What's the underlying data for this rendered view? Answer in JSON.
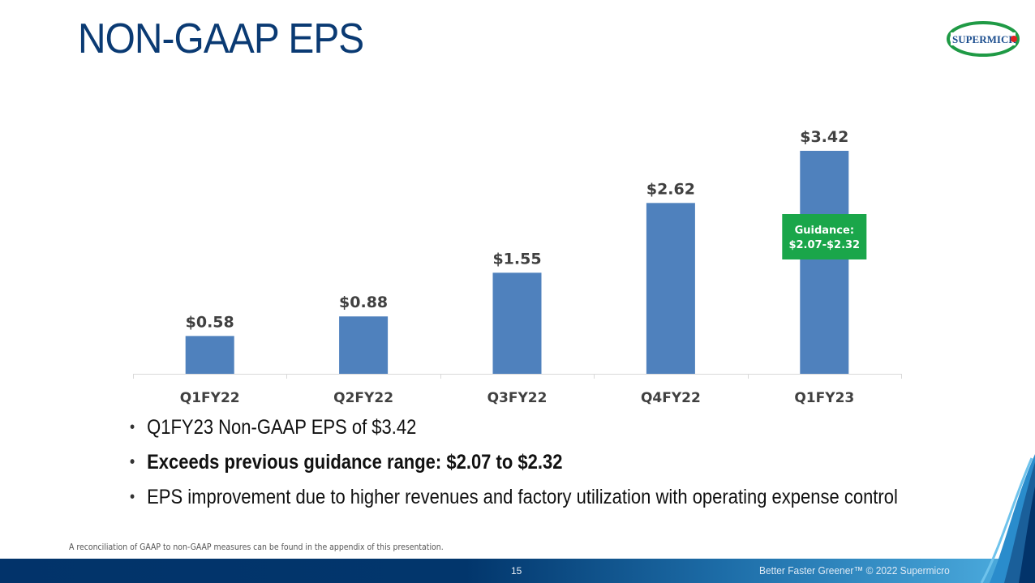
{
  "slide": {
    "title": "NON-GAAP EPS",
    "logo_text": "SUPERMICR",
    "page_number": "15",
    "footer_tagline": "Better Faster Greener™  © 2022 Supermicro",
    "footnote": "A reconciliation of GAAP to non-GAAP measures can be found in the appendix of this presentation.",
    "bullets": [
      {
        "text": "Q1FY23 Non-GAAP EPS of $3.42",
        "bold": false
      },
      {
        "text": "Exceeds previous guidance range: $2.07 to $2.32",
        "bold": true
      },
      {
        "text": "EPS improvement due to higher revenues and factory utilization with operating expense control",
        "bold": false
      }
    ],
    "bullet_glyph": "•"
  },
  "colors": {
    "title": "#0a3a73",
    "bar": "#4f81bd",
    "guidance_box": "#1aa64a",
    "footer_dark": "#02336a",
    "footer_light": "#4fb0e2"
  },
  "chart_data": {
    "type": "bar",
    "title": "",
    "xlabel": "",
    "ylabel": "",
    "categories": [
      "Q1FY22",
      "Q2FY22",
      "Q3FY22",
      "Q4FY22",
      "Q1FY23"
    ],
    "values": [
      0.58,
      0.88,
      1.55,
      2.62,
      3.42
    ],
    "data_labels": [
      "$0.58",
      "$0.88",
      "$1.55",
      "$2.62",
      "$3.42"
    ],
    "ylim": [
      0,
      3.42
    ],
    "grid": false,
    "legend": "none",
    "annotation": {
      "category": "Q1FY23",
      "lines": [
        "Guidance:",
        "$2.07-$2.32"
      ]
    }
  }
}
